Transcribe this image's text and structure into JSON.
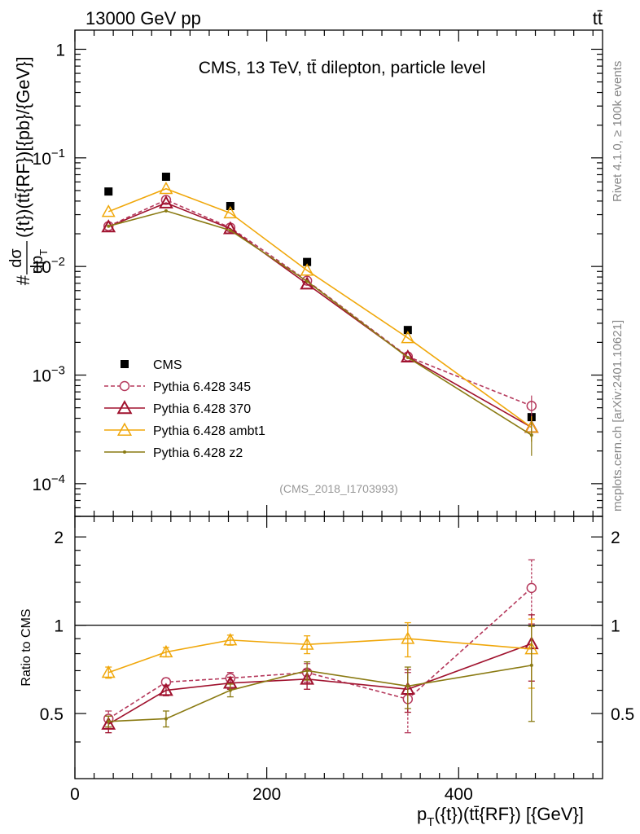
{
  "header": {
    "left": "13000 GeV pp",
    "right": "tt̄"
  },
  "side_labels": {
    "rivet": "Rivet 4.1.0, ≥ 100k events",
    "mcplots": "mcplots.cern.ch [arXiv:2401.10621]"
  },
  "chart_data": {
    "type": "scatter",
    "title": "CMS, 13 TeV, tt̄ dilepton, particle level",
    "analysis_tag": "(CMS_2018_I1703993)",
    "xlabel": "p_T({t})(tt̄{RF}) [{GeV}]",
    "xlabel_main": "p",
    "xlabel_sub": "T",
    "xlabel_rest": "({t})(tt̄{RF}) [{GeV}]",
    "ylabel": "#dσ/dp_T({t})(tt̄{RF})[{pb}/{GeV}]",
    "ylabel_hash": "#",
    "ylabel_num": "dσ",
    "ylabel_den_main": "dp",
    "ylabel_den_sub": "T",
    "ylabel_rest": "({t})(tt̄{RF})[{pb}/{GeV}]",
    "ratio_ylabel": "Ratio to CMS",
    "xlim": [
      0,
      550
    ],
    "ylim": [
      5e-05,
      1.5
    ],
    "ratio_ylim": [
      0.3,
      2.35
    ],
    "yscale": "log",
    "x": [
      35,
      95,
      162,
      242,
      347,
      476
    ],
    "x_ticks": [
      {
        "v": 0,
        "l": "0"
      },
      {
        "v": 200,
        "l": "200"
      },
      {
        "v": 400,
        "l": "400"
      }
    ],
    "y_ticks": [
      {
        "v": 1,
        "b": "1",
        "e": ""
      },
      {
        "v": 0.1,
        "b": "10",
        "e": "−1"
      },
      {
        "v": 0.01,
        "b": "10",
        "e": "−2"
      },
      {
        "v": 0.001,
        "b": "10",
        "e": "−3"
      },
      {
        "v": 0.0001,
        "b": "10",
        "e": "−4"
      }
    ],
    "ratio_ticks": [
      {
        "v": 2,
        "l": "2"
      },
      {
        "v": 1,
        "l": "1"
      },
      {
        "v": 0.5,
        "l": "0.5"
      }
    ],
    "series": [
      {
        "name": "CMS",
        "color": "#000000",
        "marker": "square",
        "dash": "",
        "line": false,
        "values": [
          0.049,
          0.067,
          0.036,
          0.011,
          0.0026,
          0.00041
        ],
        "ratio": [
          1,
          1,
          1,
          1,
          1,
          1
        ]
      },
      {
        "name": "Pythia 6.428 345",
        "color": "#b5395c",
        "marker": "circle",
        "dash": "5,3",
        "line": true,
        "values": [
          0.0235,
          0.041,
          0.0228,
          0.0074,
          0.00148,
          0.00052
        ],
        "ratio": [
          0.48,
          0.64,
          0.66,
          0.69,
          0.56,
          1.34
        ],
        "ratio_err": [
          0.03,
          0.02,
          0.03,
          0.05,
          0.13,
          0.33
        ]
      },
      {
        "name": "Pythia 6.428 370",
        "color": "#a0122e",
        "marker": "triangle",
        "dash": "",
        "line": true,
        "values": [
          0.0232,
          0.0385,
          0.0223,
          0.0069,
          0.00147,
          0.00033
        ],
        "ratio": [
          0.46,
          0.6,
          0.635,
          0.655,
          0.605,
          0.865
        ],
        "ratio_err": [
          0.03,
          0.025,
          0.03,
          0.05,
          0.1,
          0.22
        ]
      },
      {
        "name": "Pythia 6.428 ambt1",
        "color": "#f0a70a",
        "marker": "triangle-open",
        "dash": "",
        "line": true,
        "values": [
          0.032,
          0.052,
          0.031,
          0.0092,
          0.0022,
          0.00033
        ],
        "ratio": [
          0.69,
          0.81,
          0.89,
          0.86,
          0.9,
          0.83
        ],
        "ratio_err": [
          0.03,
          0.03,
          0.035,
          0.06,
          0.12,
          0.22
        ]
      },
      {
        "name": "Pythia 6.428 z2",
        "color": "#8a7a12",
        "marker": "dot",
        "dash": "",
        "line": true,
        "values": [
          0.0235,
          0.0325,
          0.0215,
          0.0073,
          0.00145,
          0.00028
        ],
        "ratio": [
          0.47,
          0.48,
          0.6,
          0.7,
          0.62,
          0.73
        ],
        "ratio_err": [
          0.02,
          0.03,
          0.03,
          0.05,
          0.1,
          0.26
        ]
      }
    ]
  }
}
